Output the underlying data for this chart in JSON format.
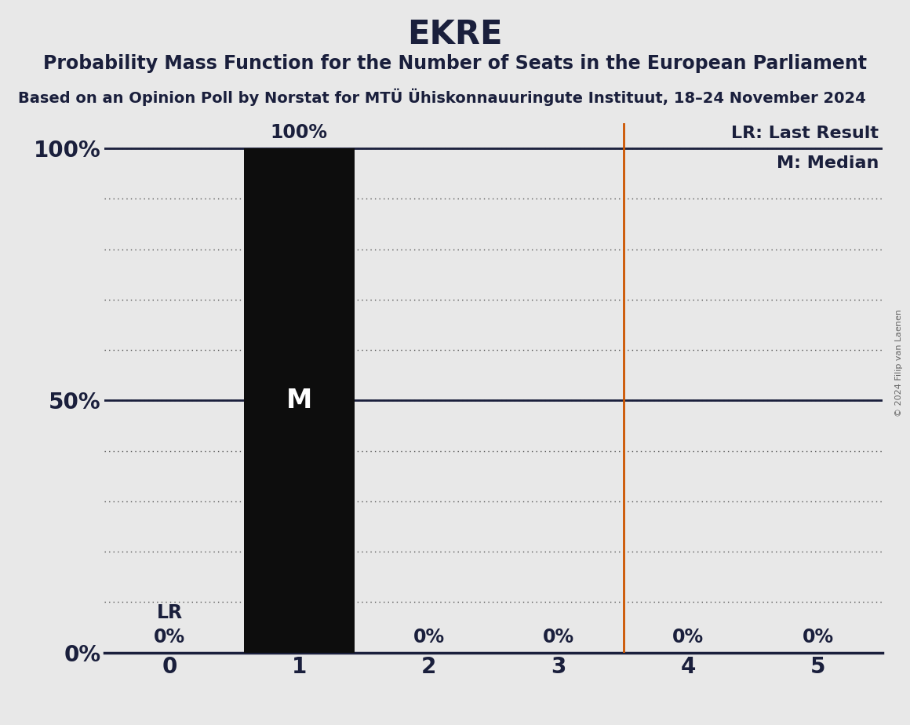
{
  "title": "EKRE",
  "subtitle1": "Probability Mass Function for the Number of Seats in the European Parliament",
  "subtitle2": "Based on an Opinion Poll by Norstat for MTÜ Ühiskonnauuringute Instituut, 18–24 November 2024",
  "copyright": "© 2024 Filip van Laenen",
  "seats": [
    0,
    1,
    2,
    3,
    4,
    5
  ],
  "probabilities": [
    0.0,
    1.0,
    0.0,
    0.0,
    0.0,
    0.0
  ],
  "bar_color": "#0d0d0d",
  "median": 1,
  "last_result": 3.5,
  "lr_label": "LR: Last Result",
  "median_label": "M: Median",
  "median_text_color": "#ffffff",
  "lr_line_color": "#cc5500",
  "background_color": "#e8e8e8",
  "title_fontsize": 30,
  "subtitle1_fontsize": 17,
  "subtitle2_fontsize": 14,
  "axis_tick_fontsize": 20,
  "bar_label_fontsize": 17,
  "legend_fontsize": 16,
  "text_color": "#1a1f3c",
  "grid_color": "#555555",
  "ylim": [
    0,
    1.05
  ],
  "xlim": [
    -0.5,
    5.5
  ]
}
